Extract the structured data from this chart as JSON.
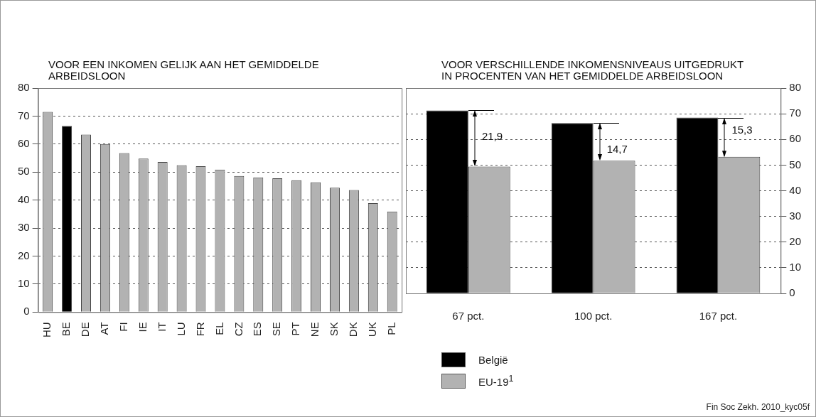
{
  "chart_data": [
    {
      "type": "bar",
      "title": "VOOR EEN INKOMEN GELIJK AAN HET GEMIDDELDE ARBEIDSLOON",
      "categories": [
        "HU",
        "BE",
        "DE",
        "AT",
        "FI",
        "IE",
        "IT",
        "LU",
        "FR",
        "EL",
        "CZ",
        "ES",
        "SE",
        "PT",
        "NE",
        "SK",
        "DK",
        "UK",
        "PL"
      ],
      "values": [
        71.5,
        66.5,
        63.4,
        60,
        56.8,
        54.8,
        53.6,
        52.5,
        52.1,
        50.9,
        48.6,
        48.1,
        47.8,
        47.1,
        46.4,
        44.4,
        43.6,
        38.9,
        35.9
      ],
      "colors": [
        "#b2b2b2",
        "#000000",
        "#b2b2b2",
        "#b2b2b2",
        "#b2b2b2",
        "#b2b2b2",
        "#b2b2b2",
        "#b2b2b2",
        "#b2b2b2",
        "#b2b2b2",
        "#b2b2b2",
        "#b2b2b2",
        "#b2b2b2",
        "#b2b2b2",
        "#b2b2b2",
        "#b2b2b2",
        "#b2b2b2",
        "#b2b2b2",
        "#b2b2b2"
      ],
      "ylim": [
        0,
        80
      ],
      "yticks": [
        0,
        10,
        20,
        30,
        40,
        50,
        60,
        70,
        80
      ],
      "grid": "y",
      "line_style": "dashed"
    },
    {
      "type": "bar",
      "title": "VOOR VERSCHILLENDE INKOMENSNIVEAUS UITGEDRUKT IN PROCENTEN VAN HET GEMIDDELDE ARBEIDSLOON",
      "categories": [
        "67 pct.",
        "100 pct.",
        "167 pct."
      ],
      "series": [
        {
          "name": "België",
          "color": "#000000",
          "values": [
            71.3,
            66.4,
            68.5
          ]
        },
        {
          "name": "EU-19$^{1}$",
          "color": "#b2b2b2",
          "values": [
            49.4,
            51.7,
            53.2
          ]
        }
      ],
      "ylim": [
        0,
        80
      ],
      "yticks": [
        0,
        10,
        20,
        30,
        40,
        50,
        60,
        70,
        80
      ],
      "grid": "y",
      "line_style": "dashed",
      "legend": "bottom left",
      "annotations": [
        {
          "text": "21,9",
          "x": "67 pct.",
          "y": 61
        },
        {
          "text": "14,7",
          "x": "100 pct.",
          "y": 56
        },
        {
          "text": "15,3",
          "x": "167 pct.",
          "y": 63.5
        },
        "Fin Soc Zekh. 2010_kyc05f"
      ]
    }
  ]
}
